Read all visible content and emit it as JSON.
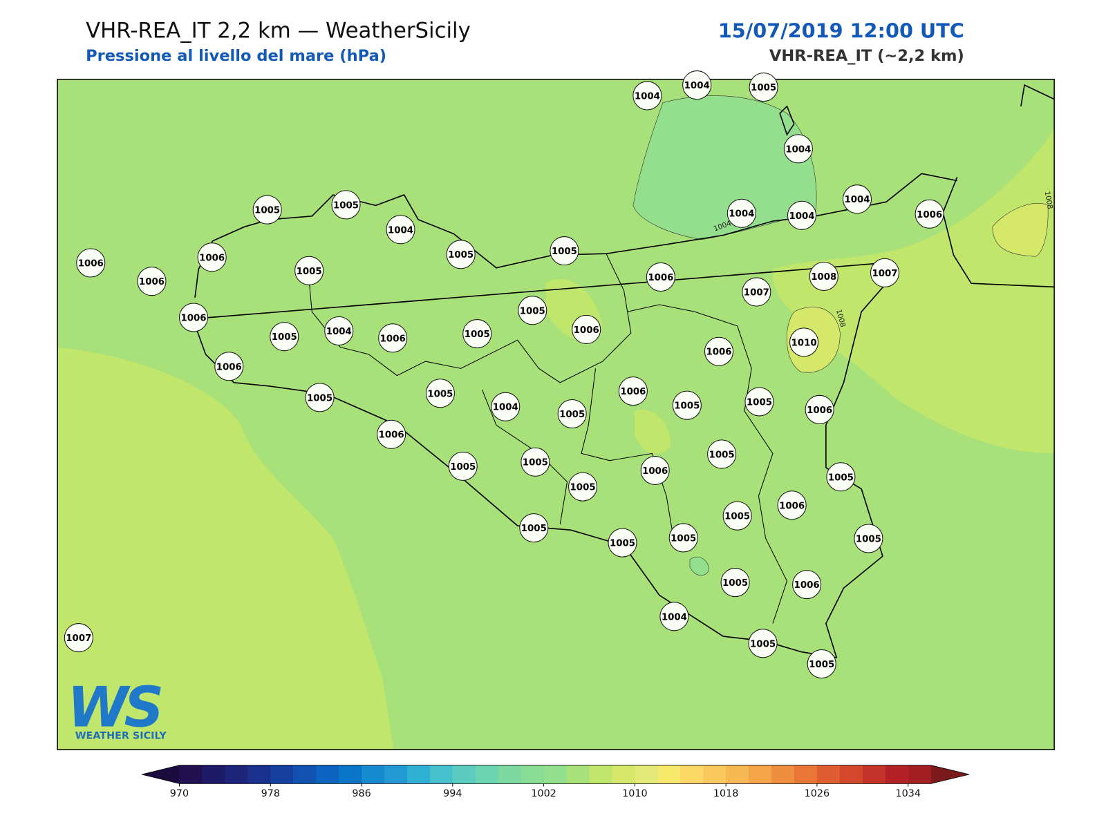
{
  "header": {
    "title": "VHR-REA_IT 2,2 km — WeatherSicily",
    "subtitle": "Pressione al livello del mare (hPa)",
    "datetime": "15/07/2019 12:00 UTC",
    "model": "VHR-REA_IT (~2,2 km)"
  },
  "stations": [
    1004,
    1004,
    1005,
    1004,
    1005,
    1005,
    1004,
    1005,
    1005,
    1004,
    1004,
    1004,
    1006,
    1006,
    1006,
    1006,
    1005,
    1006,
    1008,
    1007,
    1007,
    1006,
    1005,
    1005,
    1004,
    1006,
    1005,
    1006,
    1010,
    1006,
    1006,
    1005,
    1005,
    1004,
    1005,
    1006,
    1005,
    1005,
    1006,
    1006,
    1005,
    1005,
    1005,
    1006,
    1005,
    1005,
    1006,
    1005,
    1005,
    1005,
    1005,
    1005,
    1005,
    1006,
    1004,
    1005,
    1005,
    1007
  ],
  "contour_labels": [
    "1004",
    "1008",
    "1008"
  ],
  "logo": {
    "mark": "WS",
    "name": "WEATHER SICILY"
  },
  "colorbar": {
    "clim": [
      970,
      1036
    ],
    "ticks": [
      970,
      978,
      986,
      994,
      1002,
      1010,
      1018,
      1026,
      1034
    ],
    "colors": [
      "#20104f",
      "#1f1a66",
      "#1c257a",
      "#19308c",
      "#15409f",
      "#1152b0",
      "#0d63bf",
      "#0a74c8",
      "#168acf",
      "#2399d3",
      "#2fb0d5",
      "#45c0cc",
      "#5ccbc0",
      "#6dd4b2",
      "#7dd9a0",
      "#88dc94",
      "#93df8e",
      "#a8e07a",
      "#c0e66c",
      "#d5e86a",
      "#e3ea78",
      "#f6e86a",
      "#fcd867",
      "#f9c95d",
      "#f6b852",
      "#f3a547",
      "#ee8e3f",
      "#e97537",
      "#e05d31",
      "#d4472c",
      "#c53229",
      "#b52226",
      "#a31f24"
    ],
    "under_color": "#1a0c3f",
    "over_color": "#7a1a1a"
  }
}
